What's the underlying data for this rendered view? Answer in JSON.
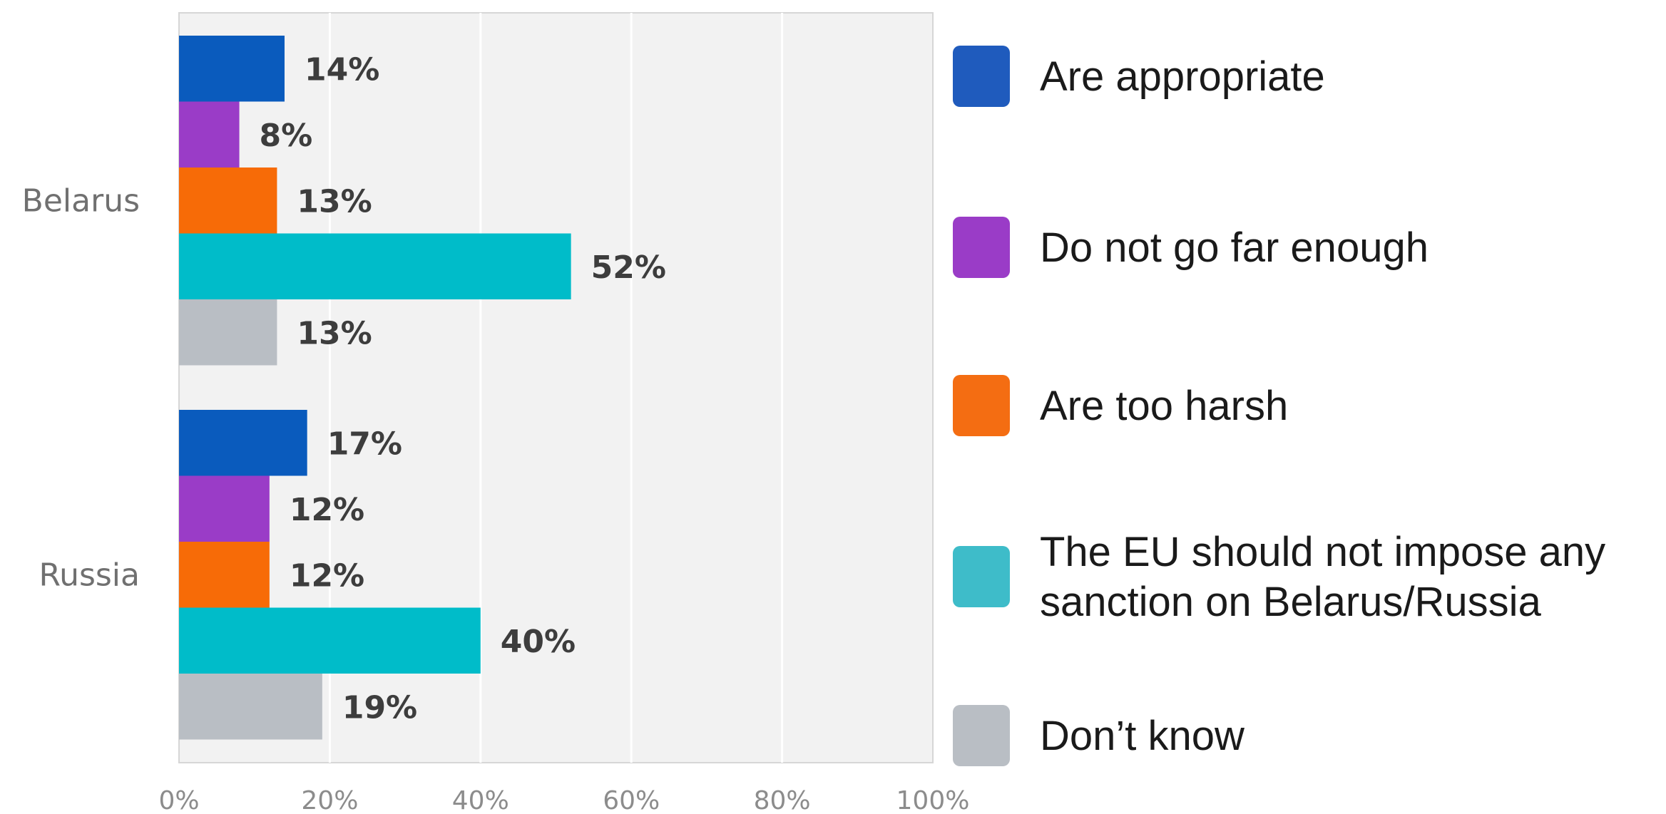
{
  "chart_data": {
    "type": "bar",
    "orientation": "horizontal",
    "categories": [
      "Belarus",
      "Russia"
    ],
    "series": [
      {
        "name": "Are appropriate",
        "color": "#0a5bbd",
        "legend_color": "#1f5bbd",
        "values": [
          14,
          17
        ],
        "labels": [
          "14%",
          "17%"
        ]
      },
      {
        "name": "Do not go far enough",
        "color": "#9a3cc7",
        "legend_color": "#9a3cc7",
        "values": [
          8,
          12
        ],
        "labels": [
          "8%",
          "12%"
        ]
      },
      {
        "name": "Are too harsh",
        "color": "#f76b07",
        "legend_color": "#f46d12",
        "values": [
          13,
          12
        ],
        "labels": [
          "13%",
          "12%"
        ]
      },
      {
        "name": "The EU should not impose any sanction on Belarus/Russia",
        "legend_lines": [
          "The EU should not impose any",
          "sanction on Belarus/Russia"
        ],
        "color": "#00bcc9",
        "legend_color": "#3ebcc9",
        "values": [
          52,
          40
        ],
        "labels": [
          "52%",
          "40%"
        ]
      },
      {
        "name": "Don’t know",
        "color": "#b9bec4",
        "legend_color": "#b9bec4",
        "values": [
          13,
          19
        ],
        "labels": [
          "13%",
          "19%"
        ]
      }
    ],
    "xlim": [
      0,
      100
    ],
    "x_ticks": [
      "0%",
      "20%",
      "40%",
      "60%",
      "80%",
      "100%"
    ],
    "grid": true,
    "plot_background": "#f2f2f2",
    "legend_position": "right",
    "title": "",
    "xlabel": "",
    "ylabel": ""
  }
}
